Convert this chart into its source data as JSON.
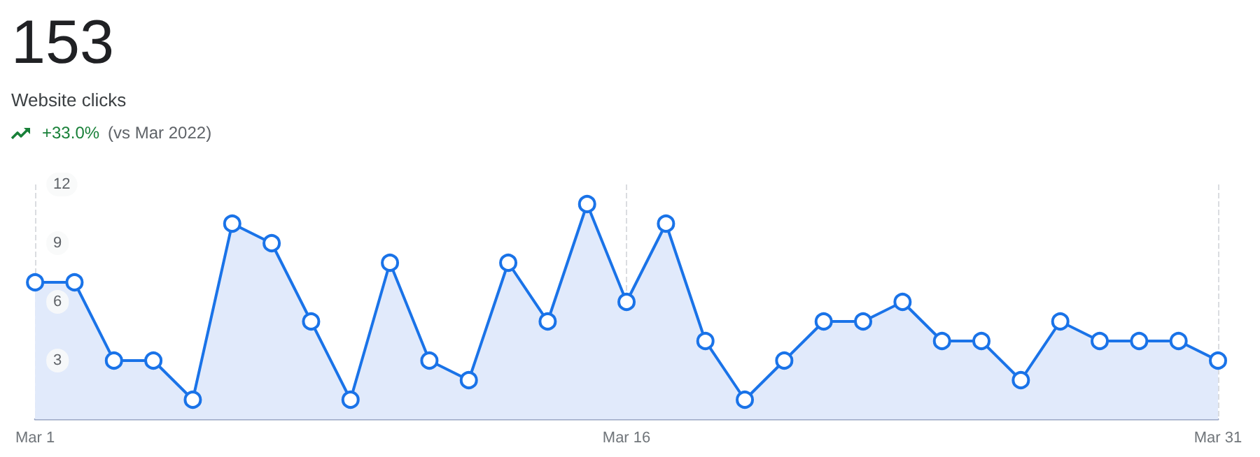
{
  "chart_data": {
    "type": "area",
    "title": "153",
    "subtitle": "Website clicks",
    "annotations": [
      "+33.0%",
      "(vs Mar 2022)"
    ],
    "categories": [
      "Mar 1",
      null,
      null,
      null,
      null,
      null,
      null,
      null,
      null,
      null,
      null,
      null,
      null,
      null,
      null,
      "Mar 16",
      null,
      null,
      null,
      null,
      null,
      null,
      null,
      null,
      null,
      null,
      null,
      null,
      null,
      null,
      "Mar 31"
    ],
    "series": [
      {
        "color": "#1a73e8",
        "values": [
          7,
          7,
          3,
          3,
          1,
          10,
          9,
          5,
          1,
          8,
          3,
          2,
          8,
          5,
          11,
          6,
          10,
          4,
          1,
          3,
          5,
          5,
          6,
          4,
          4,
          2,
          5,
          4,
          4,
          4,
          3
        ]
      }
    ],
    "ylim": [
      0,
      12
    ],
    "yticks": [
      3,
      6,
      9,
      12
    ],
    "grid": "x",
    "marker": "circle",
    "line_style": "solid"
  }
}
